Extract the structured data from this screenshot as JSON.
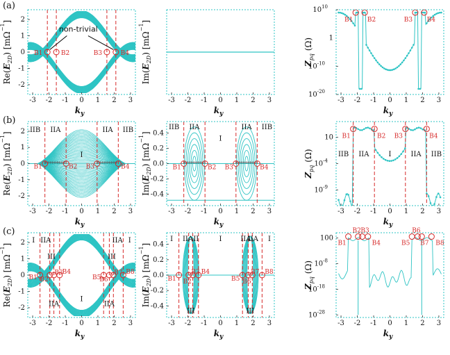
{
  "colors": {
    "teal": "#2ec4c4",
    "boundary": "#d62828",
    "frame": "#2ec4c4",
    "marker": "#555555"
  },
  "rows": [
    {
      "label": "(a)",
      "panels": [
        {
          "id": "a1",
          "type": "band-re",
          "ylabel": "Re(E_2D) [mΩ⁻¹]",
          "ylabel_parts": [
            "Re(",
            "E",
            "2D",
            ") [mΩ",
            "−1",
            "]"
          ],
          "xlabel": "k_y",
          "xlim": [
            -3.3,
            3.3
          ],
          "ylim": [
            -2.6,
            2.6
          ],
          "xticks": [
            "-3",
            "-2",
            "-1",
            "0",
            "1",
            "2",
            "3"
          ],
          "xtick_vals": [
            -3,
            -2,
            -1,
            0,
            1,
            2,
            3
          ],
          "yticks": [
            "-2",
            "-1",
            "0",
            "1",
            "2"
          ],
          "ytick_vals": [
            -2,
            -1,
            0,
            1,
            2
          ],
          "boundaries": [
            -2.1,
            -1.55,
            1.55,
            2.1
          ],
          "points": [
            {
              "x": -2.1,
              "label": "B1"
            },
            {
              "x": -1.55,
              "label": "B2"
            },
            {
              "x": 1.55,
              "label": "B3"
            },
            {
              "x": 2.1,
              "label": "B4"
            }
          ],
          "annotation": "non-trivial"
        },
        {
          "id": "a2",
          "type": "band-im",
          "ylabel": "Im(E_2D) [mΩ⁻¹]",
          "ylabel_parts": [
            "Im(",
            "E",
            "2D",
            ") [mΩ",
            "−1",
            "]"
          ],
          "xlabel": "k_y",
          "xlim": [
            -3.3,
            3.3
          ],
          "ylim": [
            -1,
            1
          ],
          "xticks": [
            "-3",
            "-2",
            "-1",
            "0",
            "1",
            "2",
            "3"
          ],
          "xtick_vals": [
            -3,
            -2,
            -1,
            0,
            1,
            2,
            3
          ],
          "yticks": [],
          "ytick_vals": []
        },
        {
          "id": "a3",
          "type": "impedance",
          "ylabel": "Zpq (Ω)",
          "ylabel_parts": [
            "Z",
            "pq",
            " (Ω)"
          ],
          "xlabel": "k_y",
          "xlim": [
            -3.3,
            3.3
          ],
          "ylim": [
            -20,
            10
          ],
          "xticks": [
            "-3",
            "-2",
            "-1",
            "0",
            "1",
            "2",
            "3"
          ],
          "xtick_vals": [
            -3,
            -2,
            -1,
            0,
            1,
            2,
            3
          ],
          "yticks": [
            "10",
            "10",
            "10"
          ],
          "ytick_exps": [
            "10",
            "-10",
            "-20"
          ],
          "ytick_vals": [
            10,
            -10,
            -20
          ],
          "ytick_extra": [
            {
              "label": "1",
              "val": 0
            }
          ],
          "points": [
            {
              "x": -2.1,
              "label": "B1"
            },
            {
              "x": -1.55,
              "label": "B2"
            },
            {
              "x": 1.55,
              "label": "B3"
            },
            {
              "x": 2.1,
              "label": "B4"
            }
          ]
        }
      ]
    },
    {
      "label": "(b)",
      "panels": [
        {
          "id": "b1",
          "type": "band-re-b",
          "ylabel": "Re(E_2D) [mΩ⁻¹]",
          "ylabel_parts": [
            "Re(",
            "E",
            "2D",
            ") [mΩ",
            "−1",
            "]"
          ],
          "xlabel": "k_y",
          "xlim": [
            -3.3,
            3.3
          ],
          "ylim": [
            -2.6,
            2.6
          ],
          "xticks": [
            "-3",
            "-2",
            "-1",
            "0",
            "1",
            "2",
            "3"
          ],
          "xtick_vals": [
            -3,
            -2,
            -1,
            0,
            1,
            2,
            3
          ],
          "yticks": [
            "-2",
            "-1",
            "0",
            "1",
            "2"
          ],
          "ytick_vals": [
            -2,
            -1,
            0,
            1,
            2
          ],
          "boundaries": [
            -2.25,
            -0.95,
            0.95,
            2.25
          ],
          "points": [
            {
              "x": -2.25,
              "label": "B1"
            },
            {
              "x": -0.95,
              "label": "B2"
            },
            {
              "x": 0.95,
              "label": "B3"
            },
            {
              "x": 2.25,
              "label": "B4"
            }
          ],
          "regions": [
            {
              "x": -2.85,
              "text": "IIB"
            },
            {
              "x": -1.6,
              "text": "IIA"
            },
            {
              "x": 0,
              "text": "I"
            },
            {
              "x": 1.6,
              "text": "IIA"
            },
            {
              "x": 2.85,
              "text": "IIB"
            }
          ]
        },
        {
          "id": "b2",
          "type": "band-im-b",
          "ylabel": "Im(E_2D) [mΩ⁻¹]",
          "ylabel_parts": [
            "Im(",
            "E",
            "2D",
            ") [mΩ",
            "−1",
            "]"
          ],
          "xlabel": "k_y",
          "xlim": [
            -3.3,
            3.3
          ],
          "ylim": [
            -0.55,
            0.55
          ],
          "xticks": [
            "-3",
            "-2",
            "-1",
            "0",
            "1",
            "2",
            "3"
          ],
          "xtick_vals": [
            -3,
            -2,
            -1,
            0,
            1,
            2,
            3
          ],
          "yticks": [
            "-0.4",
            "-0.2",
            "0.0",
            "0.2",
            "0.4"
          ],
          "ytick_vals": [
            -0.4,
            -0.2,
            0,
            0.2,
            0.4
          ],
          "boundaries": [
            -2.25,
            -0.95,
            0.95,
            2.25
          ],
          "points": [
            {
              "x": -2.25,
              "label": "B1"
            },
            {
              "x": -0.95,
              "label": "B2"
            },
            {
              "x": 0.95,
              "label": "B3"
            },
            {
              "x": 2.25,
              "label": "B4"
            }
          ],
          "regions": [
            {
              "x": -2.85,
              "text": "IIB"
            },
            {
              "x": -1.6,
              "text": "IIA"
            },
            {
              "x": 0,
              "text": "I"
            },
            {
              "x": 1.6,
              "text": "IIA"
            },
            {
              "x": 2.85,
              "text": "IIB"
            }
          ]
        },
        {
          "id": "b3",
          "type": "impedance-b",
          "ylabel": "Zpq (Ω)",
          "ylabel_parts": [
            "Z",
            "pq",
            " (Ω)"
          ],
          "xlabel": "k_y",
          "xlim": [
            -3.3,
            3.3
          ],
          "ylim": [
            -12,
            4
          ],
          "xticks": [
            "-3",
            "-2",
            "-1",
            "0",
            "1",
            "2",
            "3"
          ],
          "xtick_vals": [
            -3,
            -2,
            -1,
            0,
            1,
            2,
            3
          ],
          "yticks": [
            "10",
            "10",
            "10"
          ],
          "ytick_exps": [
            "",
            "-4",
            "-9"
          ],
          "ytick_vals": [
            1,
            -4,
            -9
          ],
          "boundaries": [
            -2.25,
            -0.95,
            0.95,
            2.25
          ],
          "points": [
            {
              "x": -2.25,
              "label": "B1"
            },
            {
              "x": -0.95,
              "label": "B2"
            },
            {
              "x": 0.95,
              "label": "B3"
            },
            {
              "x": 2.25,
              "label": "B4"
            }
          ],
          "regions": [
            {
              "x": -2.85,
              "text": "IIB"
            },
            {
              "x": -1.6,
              "text": "IIA"
            },
            {
              "x": 0,
              "text": "I"
            },
            {
              "x": 1.6,
              "text": "IIA"
            },
            {
              "x": 2.85,
              "text": "IIB"
            }
          ]
        }
      ]
    },
    {
      "label": "(c)",
      "panels": [
        {
          "id": "c1",
          "type": "band-re-c",
          "ylabel": "Re(E_2D) [mΩ⁻¹]",
          "ylabel_parts": [
            "Re(",
            "E",
            "2D",
            ") [mΩ",
            "−1",
            "]"
          ],
          "xlabel": "k_y",
          "xlim": [
            -3.3,
            3.3
          ],
          "ylim": [
            -2.6,
            2.6
          ],
          "xticks": [
            "-3",
            "-2",
            "-1",
            "0",
            "1",
            "2",
            "3"
          ],
          "xtick_vals": [
            -3,
            -2,
            -1,
            0,
            1,
            2,
            3
          ],
          "yticks": [
            "-2",
            "-1",
            "0",
            "1",
            "2"
          ],
          "ytick_vals": [
            -2,
            -1,
            0,
            1,
            2
          ],
          "boundaries": [
            -2.55,
            -1.95,
            -1.7,
            -1.35,
            1.35,
            1.7,
            1.95,
            2.55
          ],
          "points": [
            {
              "x": -2.55,
              "label": "B1"
            },
            {
              "x": -1.95,
              "label": "B2"
            },
            {
              "x": -1.7,
              "label": "B3"
            },
            {
              "x": -1.35,
              "label": "B4"
            },
            {
              "x": 1.35,
              "label": "B5"
            },
            {
              "x": 1.7,
              "label": "B6"
            },
            {
              "x": 1.95,
              "label": "B7"
            },
            {
              "x": 2.55,
              "label": "B8"
            }
          ],
          "regions": [
            {
              "x": -2.95,
              "y": 2.0,
              "text": "I"
            },
            {
              "x": -2.2,
              "y": 2.0,
              "text": "IIA"
            },
            {
              "x": -1.85,
              "y": 1.0,
              "text": "III"
            },
            {
              "x": 0,
              "y": -1.6,
              "text": "I"
            },
            {
              "x": -1.7,
              "y": -1.9,
              "text": "IIA"
            },
            {
              "x": 1.7,
              "y": -1.9,
              "text": "IIA"
            },
            {
              "x": 1.85,
              "y": 1.0,
              "text": "III"
            },
            {
              "x": 2.2,
              "y": 2.0,
              "text": "IIA"
            },
            {
              "x": 2.95,
              "y": 2.0,
              "text": "I"
            }
          ]
        },
        {
          "id": "c2",
          "type": "band-im-c",
          "ylabel": "Im(E_2D) [mΩ⁻¹]",
          "ylabel_parts": [
            "Im(",
            "E",
            "2D",
            ") [mΩ",
            "−1",
            "]"
          ],
          "xlabel": "k_y",
          "xlim": [
            -3.3,
            3.3
          ],
          "ylim": [
            -0.55,
            0.55
          ],
          "xticks": [
            "-3",
            "-2",
            "-1",
            "0",
            "1",
            "2",
            "3"
          ],
          "xtick_vals": [
            -3,
            -2,
            -1,
            0,
            1,
            2,
            3
          ],
          "yticks": [
            "-0.4",
            "-0.2",
            "0.0",
            "0.2",
            "0.4"
          ],
          "ytick_vals": [
            -0.4,
            -0.2,
            0,
            0.2,
            0.4
          ],
          "boundaries": [
            -2.55,
            -1.95,
            -1.7,
            -1.35,
            1.35,
            1.7,
            1.95,
            2.55
          ],
          "points": [
            {
              "x": -2.55,
              "label": "B1"
            },
            {
              "x": -1.95,
              "label": "B2"
            },
            {
              "x": -1.7,
              "label": "B3"
            },
            {
              "x": -1.35,
              "label": "B4"
            },
            {
              "x": 1.35,
              "label": "B5"
            },
            {
              "x": 1.7,
              "label": "B6"
            },
            {
              "x": 1.95,
              "label": "B7"
            },
            {
              "x": 2.55,
              "label": "B8"
            }
          ],
          "regions": [
            {
              "x": -3.0,
              "y": 0.44,
              "text": "I"
            },
            {
              "x": -2.0,
              "y": 0.44,
              "text": "IIA"
            },
            {
              "x": -1.5,
              "y": 0.44,
              "text": "II"
            },
            {
              "x": 0,
              "y": 0.44,
              "text": "I"
            },
            {
              "x": 1.55,
              "y": 0.44,
              "text": "IIA"
            },
            {
              "x": 2.0,
              "y": 0.44,
              "text": "IIA"
            },
            {
              "x": 3.0,
              "y": 0.44,
              "text": "I"
            },
            {
              "x": -1.82,
              "y": -0.49,
              "text": "III"
            },
            {
              "x": 1.82,
              "y": -0.49,
              "text": "III"
            }
          ]
        },
        {
          "id": "c3",
          "type": "impedance-c",
          "ylabel": "Zpq (Ω)",
          "ylabel_parts": [
            "Z",
            "pq",
            " (Ω)"
          ],
          "xlabel": "k_y",
          "xlim": [
            -3.3,
            3.3
          ],
          "ylim": [
            -29,
            4
          ],
          "xticks": [
            "-3",
            "-2",
            "-1",
            "0",
            "1",
            "2",
            "3"
          ],
          "xtick_vals": [
            -3,
            -2,
            -1,
            0,
            1,
            2,
            3
          ],
          "yticks": [
            "100",
            "10",
            "10",
            "10"
          ],
          "ytick_exps": [
            "",
            "-8",
            "-18",
            "-28"
          ],
          "ytick_vals": [
            2,
            -8,
            -18,
            -28
          ],
          "points": [
            {
              "x": -2.55,
              "label": "B1"
            },
            {
              "x": -1.95,
              "label": "B2"
            },
            {
              "x": -1.7,
              "label": "B3"
            },
            {
              "x": -1.35,
              "label": "B4"
            },
            {
              "x": 1.35,
              "label": "B5"
            },
            {
              "x": 1.7,
              "label": "B6"
            },
            {
              "x": 1.95,
              "label": "B7"
            },
            {
              "x": 2.55,
              "label": "B8"
            }
          ]
        }
      ]
    }
  ]
}
